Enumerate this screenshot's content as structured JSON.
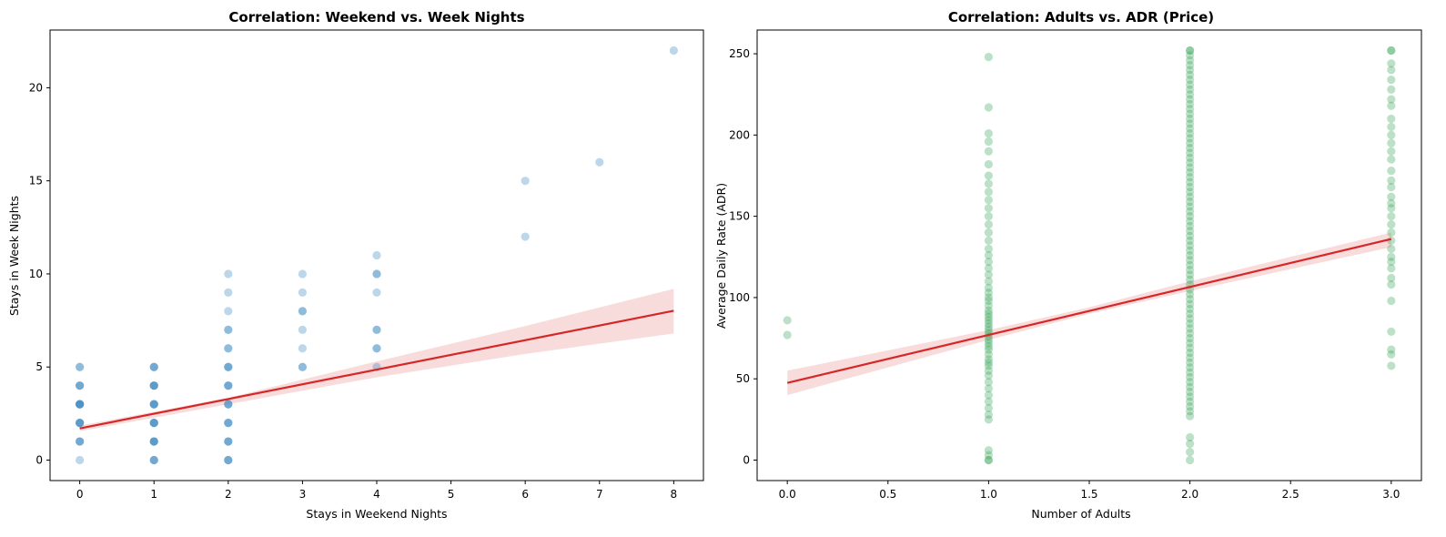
{
  "chart_data": [
    {
      "type": "scatter",
      "title": "Correlation: Weekend vs. Week Nights",
      "xlabel": "Stays in Weekend Nights",
      "ylabel": "Stays in Week Nights",
      "xlim": [
        -0.4,
        8.4
      ],
      "ylim": [
        -1.1,
        23.1
      ],
      "xticks": [
        0,
        1,
        2,
        3,
        4,
        5,
        6,
        7,
        8
      ],
      "xtick_labels": [
        "0",
        "1",
        "2",
        "3",
        "4",
        "5",
        "6",
        "7",
        "8"
      ],
      "yticks": [
        0,
        5,
        10,
        15,
        20
      ],
      "ytick_labels": [
        "0",
        "5",
        "10",
        "15",
        "20"
      ],
      "grid": false,
      "point_color": "#3182bd",
      "points": [
        [
          0,
          0
        ],
        [
          0,
          1
        ],
        [
          0,
          1
        ],
        [
          0,
          1
        ],
        [
          0,
          2
        ],
        [
          0,
          2
        ],
        [
          0,
          2
        ],
        [
          0,
          2
        ],
        [
          0,
          3
        ],
        [
          0,
          3
        ],
        [
          0,
          3
        ],
        [
          0,
          3
        ],
        [
          0,
          3
        ],
        [
          0,
          4
        ],
        [
          0,
          4
        ],
        [
          0,
          4
        ],
        [
          0,
          5
        ],
        [
          0,
          5
        ],
        [
          1,
          0
        ],
        [
          1,
          0
        ],
        [
          1,
          0
        ],
        [
          1,
          1
        ],
        [
          1,
          1
        ],
        [
          1,
          1
        ],
        [
          1,
          1
        ],
        [
          1,
          2
        ],
        [
          1,
          2
        ],
        [
          1,
          2
        ],
        [
          1,
          2
        ],
        [
          1,
          3
        ],
        [
          1,
          3
        ],
        [
          1,
          3
        ],
        [
          1,
          3
        ],
        [
          1,
          4
        ],
        [
          1,
          4
        ],
        [
          1,
          4
        ],
        [
          1,
          4
        ],
        [
          1,
          5
        ],
        [
          1,
          5
        ],
        [
          1,
          5
        ],
        [
          2,
          0
        ],
        [
          2,
          0
        ],
        [
          2,
          0
        ],
        [
          2,
          1
        ],
        [
          2,
          1
        ],
        [
          2,
          1
        ],
        [
          2,
          2
        ],
        [
          2,
          2
        ],
        [
          2,
          2
        ],
        [
          2,
          3
        ],
        [
          2,
          3
        ],
        [
          2,
          3
        ],
        [
          2,
          4
        ],
        [
          2,
          4
        ],
        [
          2,
          4
        ],
        [
          2,
          5
        ],
        [
          2,
          5
        ],
        [
          2,
          5
        ],
        [
          2,
          6
        ],
        [
          2,
          6
        ],
        [
          2,
          7
        ],
        [
          2,
          7
        ],
        [
          2,
          8
        ],
        [
          2,
          9
        ],
        [
          2,
          10
        ],
        [
          3,
          5
        ],
        [
          3,
          5
        ],
        [
          3,
          6
        ],
        [
          3,
          7
        ],
        [
          3,
          8
        ],
        [
          3,
          8
        ],
        [
          3,
          9
        ],
        [
          3,
          10
        ],
        [
          4,
          5
        ],
        [
          4,
          6
        ],
        [
          4,
          6
        ],
        [
          4,
          7
        ],
        [
          4,
          7
        ],
        [
          4,
          9
        ],
        [
          4,
          10
        ],
        [
          4,
          10
        ],
        [
          4,
          11
        ],
        [
          6,
          12
        ],
        [
          6,
          15
        ],
        [
          7,
          16
        ],
        [
          8,
          22
        ]
      ],
      "regression": {
        "intercept": 1.7,
        "slope": 0.79,
        "x_range": [
          0,
          8
        ],
        "color": "#d62728",
        "ci_lower": [
          [
            0,
            1.55
          ],
          [
            2,
            3.0
          ],
          [
            4,
            4.45
          ],
          [
            6,
            5.7
          ],
          [
            8,
            6.8
          ]
        ],
        "ci_upper": [
          [
            0,
            1.85
          ],
          [
            2,
            3.35
          ],
          [
            4,
            5.3
          ],
          [
            6,
            7.2
          ],
          [
            8,
            9.2
          ]
        ]
      }
    },
    {
      "type": "scatter",
      "title": "Correlation: Adults vs. ADR (Price)",
      "xlabel": "Number of Adults",
      "ylabel": "Average Daily Rate (ADR)",
      "xlim": [
        -0.15,
        3.15
      ],
      "ylim": [
        -12.6,
        264.6
      ],
      "xticks": [
        0,
        0.5,
        1,
        1.5,
        2,
        2.5,
        3
      ],
      "xtick_labels": [
        "0.0",
        "0.5",
        "1.0",
        "1.5",
        "2.0",
        "2.5",
        "3.0"
      ],
      "yticks": [
        0,
        50,
        100,
        150,
        200,
        250
      ],
      "ytick_labels": [
        "0",
        "50",
        "100",
        "150",
        "200",
        "250"
      ],
      "grid": false,
      "point_color": "#31a354",
      "points": [
        [
          0,
          77
        ],
        [
          0,
          86
        ],
        [
          1,
          0
        ],
        [
          1,
          0
        ],
        [
          1,
          3
        ],
        [
          1,
          6
        ],
        [
          1,
          25
        ],
        [
          1,
          28
        ],
        [
          1,
          32
        ],
        [
          1,
          36
        ],
        [
          1,
          40
        ],
        [
          1,
          44
        ],
        [
          1,
          48
        ],
        [
          1,
          52
        ],
        [
          1,
          55
        ],
        [
          1,
          58
        ],
        [
          1,
          60
        ],
        [
          1,
          62
        ],
        [
          1,
          65
        ],
        [
          1,
          68
        ],
        [
          1,
          70
        ],
        [
          1,
          72
        ],
        [
          1,
          74
        ],
        [
          1,
          76
        ],
        [
          1,
          78
        ],
        [
          1,
          80
        ],
        [
          1,
          82
        ],
        [
          1,
          84
        ],
        [
          1,
          86
        ],
        [
          1,
          88
        ],
        [
          1,
          90
        ],
        [
          1,
          92
        ],
        [
          1,
          95
        ],
        [
          1,
          98
        ],
        [
          1,
          100
        ],
        [
          1,
          103
        ],
        [
          1,
          106
        ],
        [
          1,
          110
        ],
        [
          1,
          114
        ],
        [
          1,
          118
        ],
        [
          1,
          122
        ],
        [
          1,
          126
        ],
        [
          1,
          130
        ],
        [
          1,
          135
        ],
        [
          1,
          140
        ],
        [
          1,
          145
        ],
        [
          1,
          150
        ],
        [
          1,
          155
        ],
        [
          1,
          160
        ],
        [
          1,
          165
        ],
        [
          1,
          170
        ],
        [
          1,
          175
        ],
        [
          1,
          182
        ],
        [
          1,
          190
        ],
        [
          1,
          196
        ],
        [
          1,
          201
        ],
        [
          1,
          217
        ],
        [
          1,
          248
        ],
        [
          2,
          0
        ],
        [
          2,
          5
        ],
        [
          2,
          10
        ],
        [
          2,
          14
        ],
        [
          2,
          27
        ],
        [
          2,
          30
        ],
        [
          2,
          33
        ],
        [
          2,
          36
        ],
        [
          2,
          39
        ],
        [
          2,
          42
        ],
        [
          2,
          45
        ],
        [
          2,
          48
        ],
        [
          2,
          51
        ],
        [
          2,
          54
        ],
        [
          2,
          57
        ],
        [
          2,
          60
        ],
        [
          2,
          63
        ],
        [
          2,
          66
        ],
        [
          2,
          69
        ],
        [
          2,
          72
        ],
        [
          2,
          75
        ],
        [
          2,
          78
        ],
        [
          2,
          81
        ],
        [
          2,
          84
        ],
        [
          2,
          87
        ],
        [
          2,
          90
        ],
        [
          2,
          93
        ],
        [
          2,
          96
        ],
        [
          2,
          99
        ],
        [
          2,
          102
        ],
        [
          2,
          105
        ],
        [
          2,
          108
        ],
        [
          2,
          111
        ],
        [
          2,
          114
        ],
        [
          2,
          117
        ],
        [
          2,
          120
        ],
        [
          2,
          123
        ],
        [
          2,
          126
        ],
        [
          2,
          129
        ],
        [
          2,
          132
        ],
        [
          2,
          135
        ],
        [
          2,
          138
        ],
        [
          2,
          141
        ],
        [
          2,
          144
        ],
        [
          2,
          147
        ],
        [
          2,
          150
        ],
        [
          2,
          153
        ],
        [
          2,
          156
        ],
        [
          2,
          159
        ],
        [
          2,
          162
        ],
        [
          2,
          165
        ],
        [
          2,
          168
        ],
        [
          2,
          171
        ],
        [
          2,
          174
        ],
        [
          2,
          177
        ],
        [
          2,
          180
        ],
        [
          2,
          183
        ],
        [
          2,
          186
        ],
        [
          2,
          189
        ],
        [
          2,
          192
        ],
        [
          2,
          195
        ],
        [
          2,
          198
        ],
        [
          2,
          201
        ],
        [
          2,
          204
        ],
        [
          2,
          207
        ],
        [
          2,
          210
        ],
        [
          2,
          213
        ],
        [
          2,
          216
        ],
        [
          2,
          219
        ],
        [
          2,
          222
        ],
        [
          2,
          225
        ],
        [
          2,
          228
        ],
        [
          2,
          231
        ],
        [
          2,
          234
        ],
        [
          2,
          237
        ],
        [
          2,
          240
        ],
        [
          2,
          243
        ],
        [
          2,
          246
        ],
        [
          2,
          249
        ],
        [
          2,
          252
        ],
        [
          2,
          252
        ],
        [
          3,
          58
        ],
        [
          3,
          65
        ],
        [
          3,
          68
        ],
        [
          3,
          79
        ],
        [
          3,
          98
        ],
        [
          3,
          108
        ],
        [
          3,
          112
        ],
        [
          3,
          118
        ],
        [
          3,
          122
        ],
        [
          3,
          125
        ],
        [
          3,
          130
        ],
        [
          3,
          135
        ],
        [
          3,
          140
        ],
        [
          3,
          145
        ],
        [
          3,
          150
        ],
        [
          3,
          155
        ],
        [
          3,
          158
        ],
        [
          3,
          162
        ],
        [
          3,
          168
        ],
        [
          3,
          172
        ],
        [
          3,
          178
        ],
        [
          3,
          185
        ],
        [
          3,
          190
        ],
        [
          3,
          195
        ],
        [
          3,
          200
        ],
        [
          3,
          205
        ],
        [
          3,
          210
        ],
        [
          3,
          218
        ],
        [
          3,
          222
        ],
        [
          3,
          228
        ],
        [
          3,
          234
        ],
        [
          3,
          240
        ],
        [
          3,
          244
        ],
        [
          3,
          252
        ],
        [
          3,
          252
        ]
      ],
      "regression": {
        "intercept": 47.5,
        "slope": 29.5,
        "x_range": [
          0,
          3
        ],
        "color": "#d62728",
        "ci_lower": [
          [
            0,
            40
          ],
          [
            1,
            74
          ],
          [
            1.5,
            90
          ],
          [
            2,
            104
          ],
          [
            3,
            131
          ]
        ],
        "ci_upper": [
          [
            0,
            55
          ],
          [
            1,
            80
          ],
          [
            1.5,
            94
          ],
          [
            2,
            110
          ],
          [
            3,
            140
          ]
        ]
      }
    }
  ]
}
